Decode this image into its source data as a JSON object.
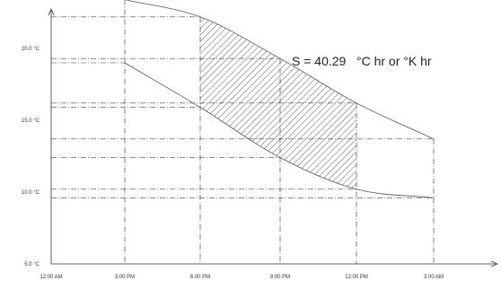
{
  "chart_data": {
    "type": "line",
    "title": "",
    "xlabel": "",
    "ylabel": "",
    "x_ticks": [
      "12:00 AM",
      "3:00 PM",
      "6:00 PM",
      "9:00 PM",
      "12:00 PM",
      "3:00 AM"
    ],
    "y_ticks": [
      "5.0 °C",
      "10.0 °C",
      "15.0 °C",
      "20.0 °C"
    ],
    "y_tick_values": [
      5,
      10,
      15,
      20
    ],
    "ylim": [
      5,
      23.5
    ],
    "annotation": "S = 40.29   °C hr or °K hr",
    "series": [
      {
        "values": [
          23.4,
          23.4,
          22.2,
          19.3,
          16.2,
          13.7
        ]
      },
      {
        "values": [
          19.3,
          19.0,
          15.9,
          12.4,
          10.2,
          9.6
        ]
      }
    ],
    "shaded_between": {
      "from": "6:00 PM",
      "to": "12:00 PM"
    },
    "grid": true
  }
}
